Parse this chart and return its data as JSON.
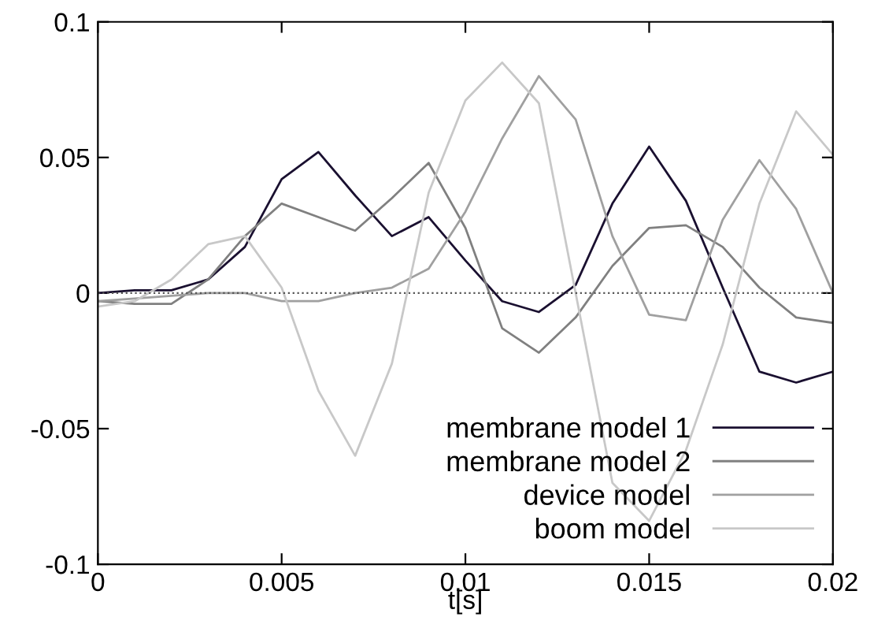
{
  "chart_data": {
    "type": "line",
    "xlabel": "t[s]",
    "x": [
      0,
      0.001,
      0.002,
      0.003,
      0.004,
      0.005,
      0.006,
      0.007,
      0.008,
      0.009,
      0.01,
      0.011,
      0.012,
      0.013,
      0.014,
      0.015,
      0.016,
      0.017,
      0.018,
      0.019,
      0.02
    ],
    "series": [
      {
        "name": "membrane model 1",
        "color": "#1a1030",
        "values": [
          0,
          0.001,
          0.001,
          0.005,
          0.017,
          0.042,
          0.052,
          0.036,
          0.021,
          0.028,
          0.012,
          -0.003,
          -0.007,
          0.003,
          0.033,
          0.054,
          0.034,
          0.002,
          -0.029,
          -0.033,
          -0.029
        ]
      },
      {
        "name": "membrane model 2",
        "color": "#808080",
        "values": [
          -0.003,
          -0.004,
          -0.004,
          0.005,
          0.021,
          0.033,
          0.028,
          0.023,
          0.035,
          0.048,
          0.024,
          -0.013,
          -0.022,
          -0.009,
          0.01,
          0.024,
          0.025,
          0.017,
          0.002,
          -0.009,
          -0.011
        ]
      },
      {
        "name": "device model",
        "color": "#a0a0a0",
        "values": [
          -0.003,
          -0.002,
          -0.001,
          0,
          0,
          -0.003,
          -0.003,
          0,
          0.002,
          0.009,
          0.03,
          0.057,
          0.08,
          0.064,
          0.021,
          -0.008,
          -0.01,
          0.027,
          0.049,
          0.031,
          0
        ]
      },
      {
        "name": "boom model",
        "color": "#c8c8c8",
        "values": [
          -0.005,
          -0.003,
          0.005,
          0.018,
          0.021,
          0.002,
          -0.036,
          -0.06,
          -0.026,
          0.037,
          0.071,
          0.085,
          0.07,
          0.0,
          -0.07,
          -0.084,
          -0.058,
          -0.019,
          0.033,
          0.067,
          0.051
        ]
      }
    ],
    "ref_lines": [
      {
        "axis": "y",
        "value": 0,
        "color": "#555555",
        "line_style": "dotted"
      }
    ],
    "xlim": [
      0,
      0.02
    ],
    "xticks": [
      0,
      0.005,
      0.01,
      0.015,
      0.02
    ],
    "ylim": [
      -0.1,
      0.1
    ],
    "yticks": [
      {
        "value": -0.1,
        "label": "-0.1"
      },
      {
        "value": -0.05,
        "label": "-0.05"
      },
      0,
      0.05,
      0.1
    ],
    "grid": false,
    "legend": "bottom right",
    "line_style": "solid"
  }
}
